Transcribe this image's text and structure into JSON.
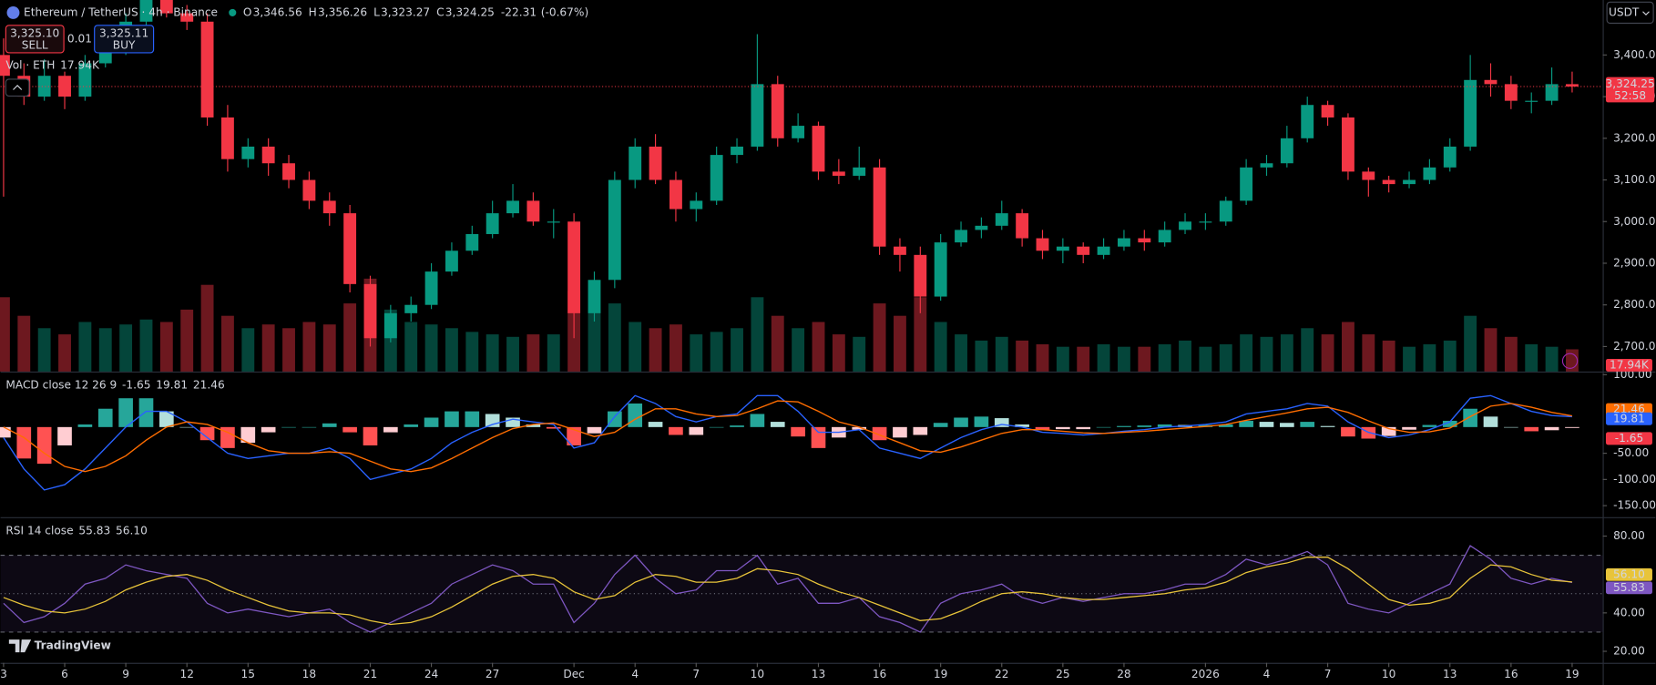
{
  "chart_data": [
    {
      "type": "candlestick",
      "title": "Ethereum / TetherUS · 4h · Binance",
      "ohlc": [
        {
          "name": "O",
          "value": 3346.56,
          "label": "3,346.56"
        },
        {
          "name": "H",
          "value": 3356.26,
          "label": "3,356.26"
        },
        {
          "name": "L",
          "value": 3323.27,
          "label": "3,323.27"
        },
        {
          "name": "C",
          "value": 3324.25,
          "label": "3,324.25"
        }
      ],
      "change": {
        "value": -22.31,
        "label": "-22.31"
      },
      "change_pct": {
        "value": -0.67,
        "label": "(-0.67%)"
      },
      "sell": {
        "value": 3325.1,
        "label": "3,325.10",
        "text": "SELL"
      },
      "spread": 0.01,
      "buy": {
        "value": 3325.11,
        "label": "3,325.11",
        "text": "BUY"
      },
      "currency": "USDT",
      "volume_title": "Vol · ETH",
      "volume_last_label": "17.94K",
      "last_price_label": "3,324.25",
      "countdown": "52:58",
      "watermark": "TradingView",
      "up_color": "#089981",
      "down_color": "#f23645",
      "x": [
        3,
        4,
        5,
        6,
        7,
        8,
        9,
        10,
        11,
        12,
        13,
        14,
        15,
        16,
        17,
        18,
        19,
        20,
        21,
        22,
        23,
        24,
        25,
        26,
        27,
        28,
        29,
        30,
        31,
        32,
        33,
        34,
        35,
        36,
        37,
        38,
        39,
        40,
        41,
        42,
        43,
        44,
        45,
        46,
        47,
        48,
        49,
        50,
        51,
        52,
        53,
        54,
        55,
        56,
        57,
        58,
        59,
        60,
        61,
        62,
        63,
        64,
        65,
        66,
        67,
        68,
        69,
        70,
        71,
        72,
        73,
        74,
        75,
        76,
        77,
        78,
        79,
        80
      ],
      "open": [
        3400,
        3350,
        3300,
        3350,
        3300,
        3380,
        3420,
        3480,
        3550,
        3500,
        3480,
        3250,
        3150,
        3180,
        3140,
        3100,
        3050,
        3020,
        2850,
        2720,
        2780,
        2800,
        2880,
        2930,
        2970,
        3020,
        3050,
        3000,
        3000,
        2780,
        2860,
        3100,
        3180,
        3100,
        3030,
        3050,
        3160,
        3180,
        3330,
        3200,
        3230,
        3120,
        3110,
        3130,
        2940,
        2920,
        2820,
        2950,
        2980,
        2990,
        3020,
        2960,
        2930,
        2940,
        2920,
        2940,
        2960,
        2950,
        2980,
        3000,
        3000,
        3050,
        3130,
        3140,
        3200,
        3280,
        3250,
        3120,
        3100,
        3090,
        3100,
        3130,
        3180,
        3340,
        3330,
        3290,
        3290,
        3330
      ],
      "high": [
        3440,
        3380,
        3390,
        3360,
        3400,
        3440,
        3500,
        3570,
        3560,
        3520,
        3500,
        3280,
        3200,
        3200,
        3160,
        3120,
        3070,
        3040,
        2870,
        2800,
        2820,
        2900,
        2950,
        2990,
        3050,
        3090,
        3070,
        3030,
        3020,
        2880,
        3120,
        3200,
        3210,
        3120,
        3070,
        3180,
        3200,
        3450,
        3350,
        3260,
        3240,
        3150,
        3180,
        3150,
        2960,
        2940,
        2970,
        3000,
        3010,
        3050,
        3030,
        2980,
        2960,
        2950,
        2960,
        2980,
        2980,
        3000,
        3020,
        3020,
        3060,
        3150,
        3160,
        3230,
        3300,
        3290,
        3260,
        3130,
        3110,
        3120,
        3150,
        3200,
        3400,
        3380,
        3350,
        3310,
        3370,
        3360
      ],
      "low": [
        3060,
        3280,
        3290,
        3270,
        3290,
        3370,
        3400,
        3460,
        3490,
        3460,
        3230,
        3120,
        3130,
        3110,
        3080,
        3030,
        2990,
        2830,
        2700,
        2710,
        2760,
        2790,
        2870,
        2920,
        2960,
        3010,
        2990,
        2960,
        2720,
        2760,
        2840,
        3080,
        3090,
        3000,
        3000,
        3040,
        3140,
        3170,
        3180,
        3190,
        3100,
        3090,
        3100,
        2920,
        2880,
        2780,
        2810,
        2940,
        2960,
        2980,
        2940,
        2910,
        2900,
        2900,
        2910,
        2930,
        2930,
        2940,
        2970,
        2980,
        2990,
        3040,
        3110,
        3130,
        3190,
        3230,
        3100,
        3060,
        3070,
        3080,
        3090,
        3120,
        3170,
        3300,
        3270,
        3260,
        3280,
        3310
      ],
      "close": [
        3350,
        3300,
        3350,
        3300,
        3380,
        3420,
        3480,
        3550,
        3500,
        3480,
        3250,
        3150,
        3180,
        3140,
        3100,
        3050,
        3020,
        2850,
        2720,
        2780,
        2800,
        2880,
        2930,
        2970,
        3020,
        3050,
        3000,
        3000,
        2780,
        2860,
        3100,
        3180,
        3100,
        3030,
        3050,
        3160,
        3180,
        3330,
        3200,
        3230,
        3120,
        3110,
        3130,
        2940,
        2920,
        2820,
        2950,
        2980,
        2990,
        3020,
        2960,
        2930,
        2940,
        2920,
        2940,
        2960,
        2950,
        2980,
        3000,
        3000,
        3050,
        3130,
        3140,
        3200,
        3280,
        3250,
        3120,
        3100,
        3090,
        3100,
        3130,
        3180,
        3340,
        3330,
        3290,
        3290,
        3330,
        3324.25
      ],
      "volume": [
        60,
        45,
        35,
        30,
        40,
        35,
        38,
        42,
        40,
        50,
        70,
        45,
        35,
        38,
        35,
        40,
        38,
        55,
        75,
        50,
        40,
        38,
        35,
        32,
        30,
        28,
        30,
        30,
        65,
        50,
        55,
        40,
        35,
        38,
        30,
        32,
        35,
        60,
        45,
        35,
        40,
        30,
        28,
        55,
        45,
        60,
        40,
        30,
        25,
        28,
        25,
        22,
        20,
        20,
        22,
        20,
        20,
        22,
        25,
        20,
        22,
        30,
        28,
        30,
        35,
        30,
        40,
        30,
        25,
        20,
        22,
        25,
        45,
        35,
        28,
        22,
        20,
        17.94
      ],
      "vlim": [
        0,
        300
      ],
      "xlim": [
        2.85,
        81.5
      ],
      "xticks": [
        3,
        6,
        9,
        12,
        15,
        18,
        21,
        24,
        27,
        {
          "value": 31,
          "label": "Dec"
        },
        {
          "value": 34,
          "label": "4"
        },
        {
          "value": 37,
          "label": "7"
        },
        {
          "value": 40,
          "label": "10"
        },
        {
          "value": 43,
          "label": "13"
        },
        {
          "value": 46,
          "label": "16"
        },
        {
          "value": 49,
          "label": "19"
        },
        {
          "value": 52,
          "label": "22"
        },
        {
          "value": 55,
          "label": "25"
        },
        {
          "value": 58,
          "label": "28"
        },
        {
          "value": 62,
          "label": "2026"
        },
        {
          "value": 65,
          "label": "4"
        },
        {
          "value": 68,
          "label": "7"
        },
        {
          "value": 71,
          "label": "10"
        },
        {
          "value": 74,
          "label": "13"
        },
        {
          "value": 77,
          "label": "16"
        },
        {
          "value": 80,
          "label": "19"
        }
      ],
      "ylim": [
        2640,
        3532
      ],
      "yticks": [
        {
          "value": 2700,
          "label": "2,700.00"
        },
        {
          "value": 2800,
          "label": "2,800.00"
        },
        {
          "value": 2900,
          "label": "2,900.00"
        },
        {
          "value": 3000,
          "label": "3,000.00"
        },
        {
          "value": 3100,
          "label": "3,100.00"
        },
        {
          "value": 3200,
          "label": "3,200.00"
        },
        {
          "value": 3300,
          "label": "3,300.00"
        },
        {
          "value": 3400,
          "label": "3,400.00"
        }
      ]
    },
    {
      "type": "macd",
      "title": "MACD close 12 26 9",
      "histogram": {
        "colors": [
          "#26a69a",
          "#b2dfdb",
          "#ff5252",
          "#ffcdd2"
        ],
        "last_label": "-1.65",
        "values": [
          -20,
          -60,
          -70,
          -35,
          5,
          35,
          55,
          55,
          30,
          0,
          -25,
          -40,
          -30,
          -10,
          0,
          0,
          7,
          -10,
          -35,
          -10,
          5,
          18,
          30,
          30,
          25,
          18,
          5,
          -3,
          -35,
          -12,
          30,
          45,
          10,
          -15,
          -15,
          0,
          3,
          25,
          10,
          -18,
          -40,
          -20,
          -5,
          -25,
          -20,
          -15,
          8,
          18,
          20,
          17,
          5,
          -5,
          -4,
          -4,
          0,
          2,
          3,
          5,
          4,
          4,
          5,
          12,
          10,
          8,
          10,
          2,
          -18,
          -22,
          -17,
          -5,
          4,
          12,
          35,
          20,
          0,
          -8,
          -6,
          -1.65
        ]
      },
      "series": [
        {
          "color": "#2962ff",
          "last_label": "19.81",
          "values": [
            -20,
            -80,
            -120,
            -110,
            -80,
            -40,
            0,
            30,
            30,
            10,
            -20,
            -50,
            -60,
            -55,
            -50,
            -50,
            -40,
            -60,
            -100,
            -90,
            -80,
            -60,
            -30,
            -10,
            5,
            15,
            10,
            5,
            -40,
            -30,
            20,
            60,
            45,
            20,
            10,
            20,
            25,
            60,
            60,
            30,
            -10,
            -10,
            -5,
            -40,
            -50,
            -60,
            -40,
            -20,
            -5,
            5,
            0,
            -10,
            -12,
            -15,
            -12,
            -8,
            -5,
            0,
            2,
            5,
            10,
            25,
            30,
            35,
            45,
            40,
            10,
            -10,
            -20,
            -15,
            -5,
            10,
            55,
            60,
            45,
            30,
            22,
            19.81
          ]
        },
        {
          "color": "#ff6d00",
          "last_label": "21.46",
          "values": [
            0,
            -20,
            -50,
            -75,
            -85,
            -75,
            -55,
            -25,
            0,
            10,
            5,
            -10,
            -30,
            -45,
            -50,
            -50,
            -47,
            -50,
            -65,
            -80,
            -85,
            -78,
            -60,
            -40,
            -20,
            -3,
            5,
            8,
            -5,
            -18,
            -10,
            15,
            35,
            35,
            25,
            20,
            22,
            35,
            50,
            48,
            30,
            10,
            0,
            -15,
            -30,
            -45,
            -48,
            -38,
            -25,
            -12,
            -5,
            -5,
            -8,
            -11,
            -12,
            -10,
            -8,
            -5,
            -2,
            1,
            5,
            13,
            20,
            27,
            35,
            38,
            28,
            12,
            -3,
            -10,
            -9,
            -2,
            20,
            40,
            45,
            38,
            28,
            21.46
          ]
        }
      ],
      "ylim": [
        -172,
        104
      ],
      "yticks": [
        {
          "value": 100,
          "label": "100.00"
        },
        {
          "value": -50,
          "label": "-50.00"
        },
        {
          "value": -100,
          "label": "-100.00"
        },
        {
          "value": -150,
          "label": "-150.00"
        }
      ]
    },
    {
      "type": "rsi",
      "title": "RSI 14 close",
      "series": [
        {
          "color": "#7e57c2",
          "last_label": "55.83",
          "values": [
            45,
            35,
            38,
            45,
            55,
            58,
            65,
            62,
            60,
            58,
            45,
            40,
            42,
            40,
            38,
            40,
            42,
            35,
            30,
            35,
            40,
            45,
            55,
            60,
            65,
            62,
            55,
            55,
            35,
            45,
            60,
            70,
            58,
            50,
            52,
            62,
            62,
            70,
            55,
            58,
            45,
            45,
            48,
            38,
            35,
            30,
            45,
            50,
            52,
            55,
            48,
            45,
            48,
            46,
            48,
            50,
            50,
            52,
            55,
            55,
            60,
            68,
            65,
            68,
            72,
            65,
            45,
            42,
            40,
            45,
            50,
            55,
            75,
            68,
            58,
            55,
            58,
            55.83
          ]
        },
        {
          "color": "#e8c43a",
          "last_label": "56.10",
          "values": [
            48,
            44,
            41,
            40,
            42,
            46,
            52,
            56,
            59,
            60,
            57,
            52,
            48,
            44,
            41,
            40,
            40,
            39,
            36,
            34,
            35,
            38,
            43,
            49,
            55,
            59,
            60,
            58,
            51,
            47,
            49,
            56,
            60,
            59,
            56,
            56,
            58,
            63,
            62,
            60,
            55,
            51,
            48,
            44,
            40,
            36,
            37,
            41,
            46,
            50,
            51,
            50,
            48,
            47,
            47,
            48,
            49,
            50,
            52,
            53,
            56,
            61,
            64,
            66,
            69,
            69,
            63,
            55,
            47,
            44,
            45,
            48,
            58,
            65,
            64,
            60,
            57,
            56.1
          ]
        }
      ],
      "bands": [
        70,
        50,
        30
      ],
      "ylim": [
        14,
        89.3
      ],
      "yticks": [
        {
          "value": 80,
          "label": "80.00"
        },
        {
          "value": 40,
          "label": "40.00"
        },
        {
          "value": 20,
          "label": "20.00"
        }
      ]
    }
  ]
}
